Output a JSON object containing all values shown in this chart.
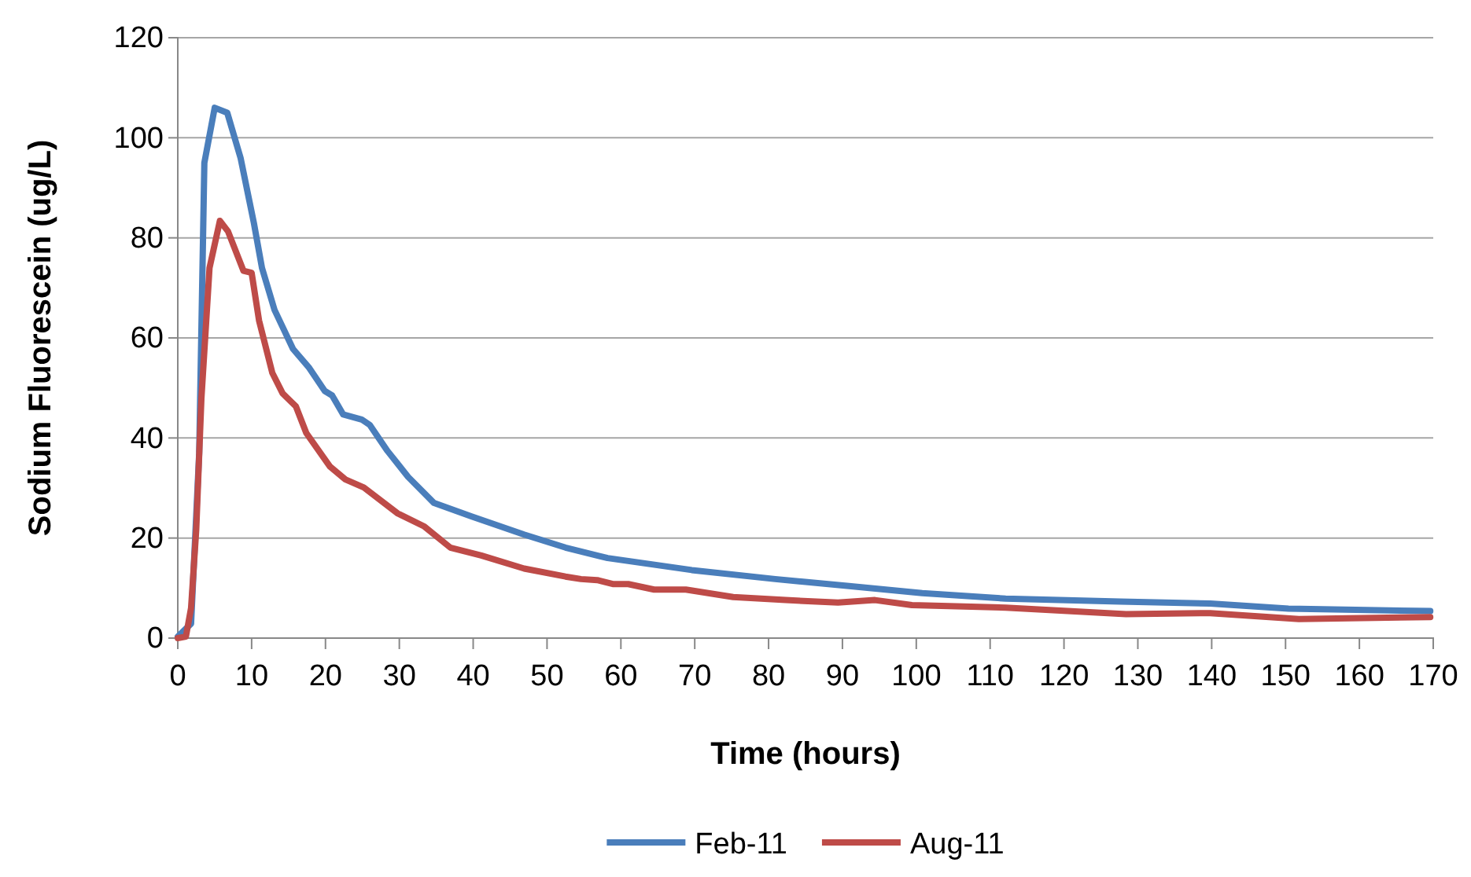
{
  "chart_data": {
    "type": "line",
    "xlabel": "Time (hours)",
    "ylabel": "Sodium Fluorescein (ug/L)",
    "xlim": [
      0,
      170
    ],
    "xticks": [
      0,
      10,
      20,
      30,
      40,
      50,
      60,
      70,
      80,
      90,
      100,
      110,
      120,
      130,
      140,
      150,
      160,
      170
    ],
    "ylim": [
      0,
      120
    ],
    "yticks": [
      0,
      20,
      40,
      60,
      80,
      100,
      120
    ],
    "grid": "y",
    "legend": "bottom",
    "marker": "none",
    "line_style": "solid",
    "series": [
      {
        "name": "Feb-11",
        "color": "#4a7ebb",
        "x": [
          0,
          1.8,
          2.9,
          3.6,
          5,
          6.7,
          8.5,
          10.3,
          11.4,
          13.1,
          15.6,
          17.8,
          19.9,
          20.9,
          22.4,
          24.9,
          26,
          28.4,
          31.2,
          34.7,
          39.8,
          46.9,
          52.5,
          58.2,
          69.6,
          80.9,
          90.9,
          100.8,
          112.1,
          127.6,
          139.8,
          150.4,
          169.6
        ],
        "values": [
          0.3,
          2.9,
          37,
          95,
          106,
          105,
          96,
          83,
          74,
          65.6,
          57.8,
          54,
          49.4,
          48.5,
          44.7,
          43.7,
          42.6,
          37.4,
          32.2,
          27,
          24.3,
          20.7,
          18.1,
          16,
          13.6,
          11.8,
          10.4,
          9,
          7.9,
          7.3,
          6.9,
          5.9,
          5.4
        ]
      },
      {
        "name": "Aug-11",
        "color": "#be4b48",
        "x": [
          0,
          1.1,
          1.8,
          2.5,
          3.2,
          4.3,
          5.7,
          6.8,
          8.9,
          10,
          11,
          12.8,
          14.2,
          16,
          17.4,
          20.6,
          22.7,
          25.2,
          29.8,
          33.4,
          36.9,
          41.1,
          46.9,
          52.5,
          54.6,
          56.8,
          58.9,
          61,
          64.5,
          68.8,
          75.2,
          82.3,
          89.4,
          94.4,
          99.4,
          112.1,
          128.4,
          139.8,
          151.8,
          169.6
        ],
        "values": [
          0,
          0.3,
          6,
          21.7,
          47.9,
          74,
          83.4,
          81.3,
          73.4,
          73,
          63.5,
          53,
          48.9,
          46.3,
          41,
          34.3,
          31.7,
          30.1,
          24.9,
          22.3,
          18.1,
          16.5,
          13.9,
          12.3,
          11.8,
          11.6,
          10.8,
          10.8,
          9.7,
          9.7,
          8.2,
          7.6,
          7.1,
          7.6,
          6.6,
          6.1,
          4.8,
          5,
          3.8,
          4.2
        ]
      }
    ]
  }
}
